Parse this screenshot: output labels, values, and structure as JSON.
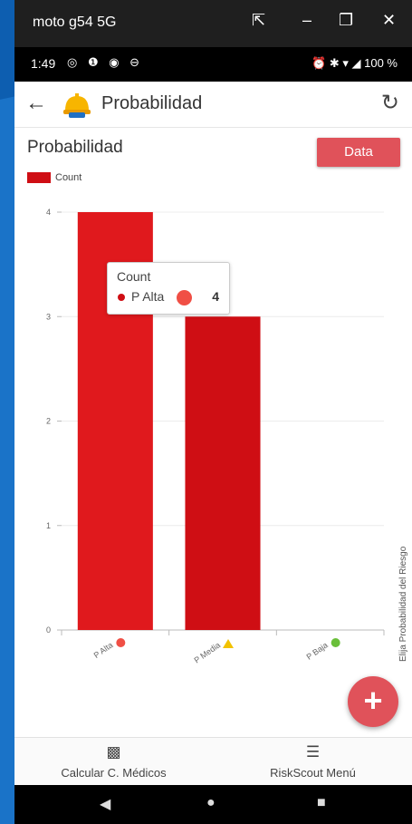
{
  "window": {
    "title": "moto g54 5G",
    "buttons": {
      "cast_icon": "⇱",
      "minimize_icon": "–",
      "maximize_icon": "❐",
      "close_icon": "✕"
    }
  },
  "status_bar": {
    "time": "1:49",
    "left_icons": "◎ ❶ ◉ ⊖",
    "right_icons": "⏰ ✱ ▾ ◢",
    "battery": "100 %"
  },
  "app_bar": {
    "title": "Probabilidad",
    "back_icon": "←",
    "refresh_icon": "↻"
  },
  "page": {
    "chart_title": "Probabilidad",
    "data_button": "Data",
    "side_label": "Elija Probabilidad del Riesgo"
  },
  "chart_data": {
    "type": "bar",
    "categories": [
      "P Alta",
      "P Media",
      "P Baja"
    ],
    "series": [
      {
        "name": "Count",
        "values": [
          4,
          3,
          0
        ],
        "color": "#cf0e14"
      }
    ],
    "category_marker_colors": [
      "#f04f45",
      "#f2c200",
      "#6abf3a"
    ],
    "yticks": [
      0,
      1,
      2,
      3,
      4
    ],
    "ylim": [
      0,
      4
    ],
    "legend": "top-left",
    "grid": true
  },
  "tooltip": {
    "title": "Count",
    "label": "P Alta",
    "value": "4"
  },
  "fab": {
    "icon": "+"
  },
  "bottom_nav": [
    {
      "label": "Calcular C. Médicos",
      "icon": "map-icon",
      "glyph": "▩"
    },
    {
      "label": "RiskScout Menú",
      "icon": "menu-icon",
      "glyph": "☰"
    }
  ],
  "system_nav": {
    "back": "◀",
    "home": "●",
    "recents": "■"
  }
}
